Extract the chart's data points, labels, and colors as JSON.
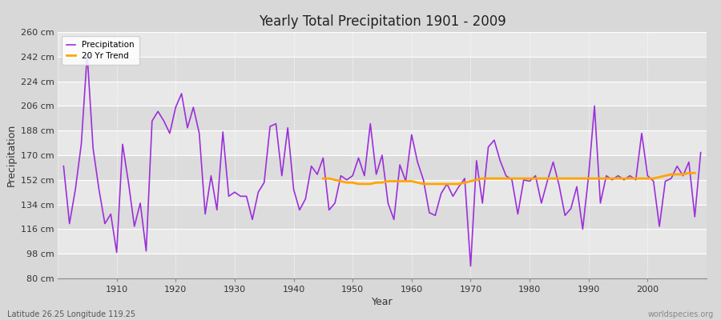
{
  "title": "Yearly Total Precipitation 1901 - 2009",
  "xlabel": "Year",
  "ylabel": "Precipitation",
  "subtitle": "Latitude 26.25 Longitude 119.25",
  "watermark": "worldspecies.org",
  "ylim": [
    80,
    260
  ],
  "yticks": [
    80,
    98,
    116,
    134,
    152,
    170,
    188,
    206,
    224,
    242,
    260
  ],
  "ytick_labels": [
    "80 cm",
    "98 cm",
    "116 cm",
    "134 cm",
    "152 cm",
    "170 cm",
    "188 cm",
    "206 cm",
    "224 cm",
    "242 cm",
    "260 cm"
  ],
  "xlim": [
    1900,
    2010
  ],
  "precip_color": "#9b30d9",
  "trend_color": "#FFA500",
  "bg_color": "#d8d8d8",
  "plot_bg_color": "#e0e0e0",
  "band_color_light": "#e8e8e8",
  "band_color_dark": "#d4d4d4",
  "years": [
    1901,
    1902,
    1903,
    1904,
    1905,
    1906,
    1907,
    1908,
    1909,
    1910,
    1911,
    1912,
    1913,
    1914,
    1915,
    1916,
    1917,
    1918,
    1919,
    1920,
    1921,
    1922,
    1923,
    1924,
    1925,
    1926,
    1927,
    1928,
    1929,
    1930,
    1931,
    1932,
    1933,
    1934,
    1935,
    1936,
    1937,
    1938,
    1939,
    1940,
    1941,
    1942,
    1943,
    1944,
    1945,
    1946,
    1947,
    1948,
    1949,
    1950,
    1951,
    1952,
    1953,
    1954,
    1955,
    1956,
    1957,
    1958,
    1959,
    1960,
    1961,
    1962,
    1963,
    1964,
    1965,
    1966,
    1967,
    1968,
    1969,
    1970,
    1971,
    1972,
    1973,
    1974,
    1975,
    1976,
    1977,
    1978,
    1979,
    1980,
    1981,
    1982,
    1983,
    1984,
    1985,
    1986,
    1987,
    1988,
    1989,
    1990,
    1991,
    1992,
    1993,
    1994,
    1995,
    1996,
    1997,
    1998,
    1999,
    2000,
    2001,
    2002,
    2003,
    2004,
    2005,
    2006,
    2007,
    2008,
    2009
  ],
  "precip": [
    162,
    120,
    145,
    178,
    244,
    175,
    145,
    120,
    127,
    99,
    178,
    150,
    118,
    135,
    100,
    195,
    202,
    195,
    186,
    205,
    215,
    190,
    205,
    186,
    127,
    155,
    130,
    187,
    140,
    143,
    140,
    140,
    123,
    143,
    150,
    191,
    193,
    155,
    190,
    145,
    130,
    138,
    162,
    156,
    168,
    130,
    135,
    155,
    152,
    155,
    168,
    155,
    193,
    156,
    170,
    135,
    123,
    163,
    151,
    185,
    165,
    152,
    128,
    126,
    142,
    149,
    140,
    147,
    153,
    89,
    166,
    135,
    176,
    181,
    166,
    155,
    152,
    127,
    152,
    151,
    155,
    135,
    151,
    165,
    148,
    126,
    131,
    147,
    116,
    155,
    206,
    135,
    155,
    152,
    155,
    152,
    155,
    152,
    186,
    155,
    151,
    118,
    151,
    153,
    162,
    155,
    165,
    125,
    172
  ],
  "trend_start_year": 1945,
  "trend": [
    153,
    153,
    152,
    151,
    150,
    150,
    149,
    149,
    149,
    150,
    150,
    151,
    151,
    151,
    151,
    151,
    150,
    149,
    149,
    149,
    149,
    149,
    149,
    149,
    150,
    151,
    152,
    153,
    153,
    153,
    153,
    153,
    153,
    153,
    153,
    153,
    153,
    153,
    153,
    153,
    153,
    153,
    153,
    153,
    153,
    153,
    153,
    153,
    153,
    153,
    153,
    153,
    153,
    153,
    153,
    153,
    153,
    154,
    155,
    156,
    156,
    156,
    157,
    157
  ]
}
